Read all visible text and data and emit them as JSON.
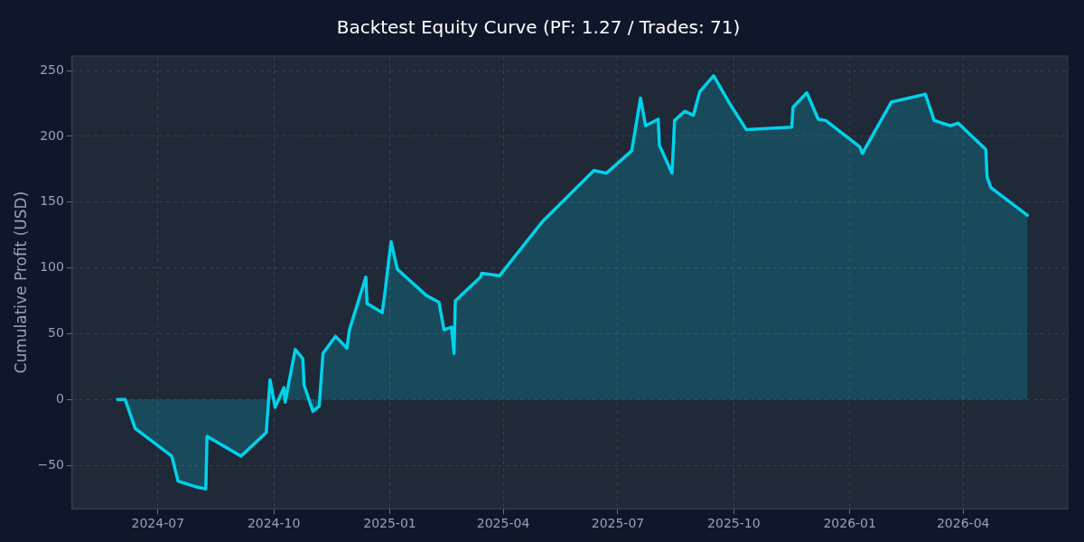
{
  "chart_data": {
    "type": "area",
    "title": "Backtest Equity Curve (PF: 1.27 / Trades: 71)",
    "ylabel": "Cumulative Profit (USD)",
    "x": [
      "2024-05-30",
      "2024-06-05",
      "2024-06-13",
      "2024-07-12",
      "2024-07-17",
      "2024-07-30",
      "2024-08-08",
      "2024-08-09",
      "2024-09-05",
      "2024-09-25",
      "2024-09-28",
      "2024-10-02",
      "2024-10-09",
      "2024-10-10",
      "2024-10-18",
      "2024-10-24",
      "2024-10-25",
      "2024-11-01",
      "2024-11-06",
      "2024-11-09",
      "2024-11-19",
      "2024-11-28",
      "2024-11-30",
      "2024-12-13",
      "2024-12-14",
      "2024-12-26",
      "2024-12-28",
      "2025-01-02",
      "2025-01-07",
      "2025-01-30",
      "2025-02-09",
      "2025-02-13",
      "2025-02-19",
      "2025-02-21",
      "2025-02-22",
      "2025-03-14",
      "2025-03-15",
      "2025-03-29",
      "2025-05-02",
      "2025-06-12",
      "2025-06-22",
      "2025-07-12",
      "2025-07-19",
      "2025-07-23",
      "2025-08-02",
      "2025-08-03",
      "2025-08-13",
      "2025-08-15",
      "2025-08-23",
      "2025-08-30",
      "2025-09-04",
      "2025-09-15",
      "2025-09-27",
      "2025-10-11",
      "2025-11-16",
      "2025-11-17",
      "2025-11-28",
      "2025-12-07",
      "2025-12-13",
      "2026-01-09",
      "2026-01-11",
      "2026-02-03",
      "2026-03-02",
      "2026-03-09",
      "2026-03-22",
      "2026-03-28",
      "2026-04-19",
      "2026-04-20",
      "2026-04-23",
      "2026-05-22"
    ],
    "series": [
      {
        "color": "#00d2eb",
        "values": [
          0,
          0,
          -22,
          -43,
          -62,
          -66,
          -68,
          -28,
          -43,
          -25,
          15,
          -6,
          9,
          -2,
          38,
          31,
          11,
          -9,
          -5,
          35,
          48,
          39,
          53,
          93,
          73,
          66,
          80,
          120,
          99,
          79,
          74,
          53,
          55,
          35,
          75,
          93,
          96,
          94,
          135,
          174,
          172,
          189,
          229,
          208,
          213,
          193,
          172,
          212,
          219,
          216,
          234,
          246,
          226,
          205,
          207,
          222,
          233,
          213,
          212,
          192,
          187,
          226,
          232,
          212,
          208,
          210,
          190,
          169,
          161,
          140
        ]
      }
    ],
    "xlim": [
      "2024-04-24",
      "2026-06-23"
    ],
    "xticks": [
      "2024-07",
      "2024-10",
      "2025-01",
      "2025-04",
      "2025-07",
      "2025-10",
      "2026-01",
      "2026-04"
    ],
    "ylim": [
      -83,
      261
    ],
    "yticks": [
      -50,
      0,
      50,
      100,
      150,
      200,
      250
    ],
    "grid": true,
    "legend": false,
    "marker": "none",
    "line_style": "solid"
  }
}
